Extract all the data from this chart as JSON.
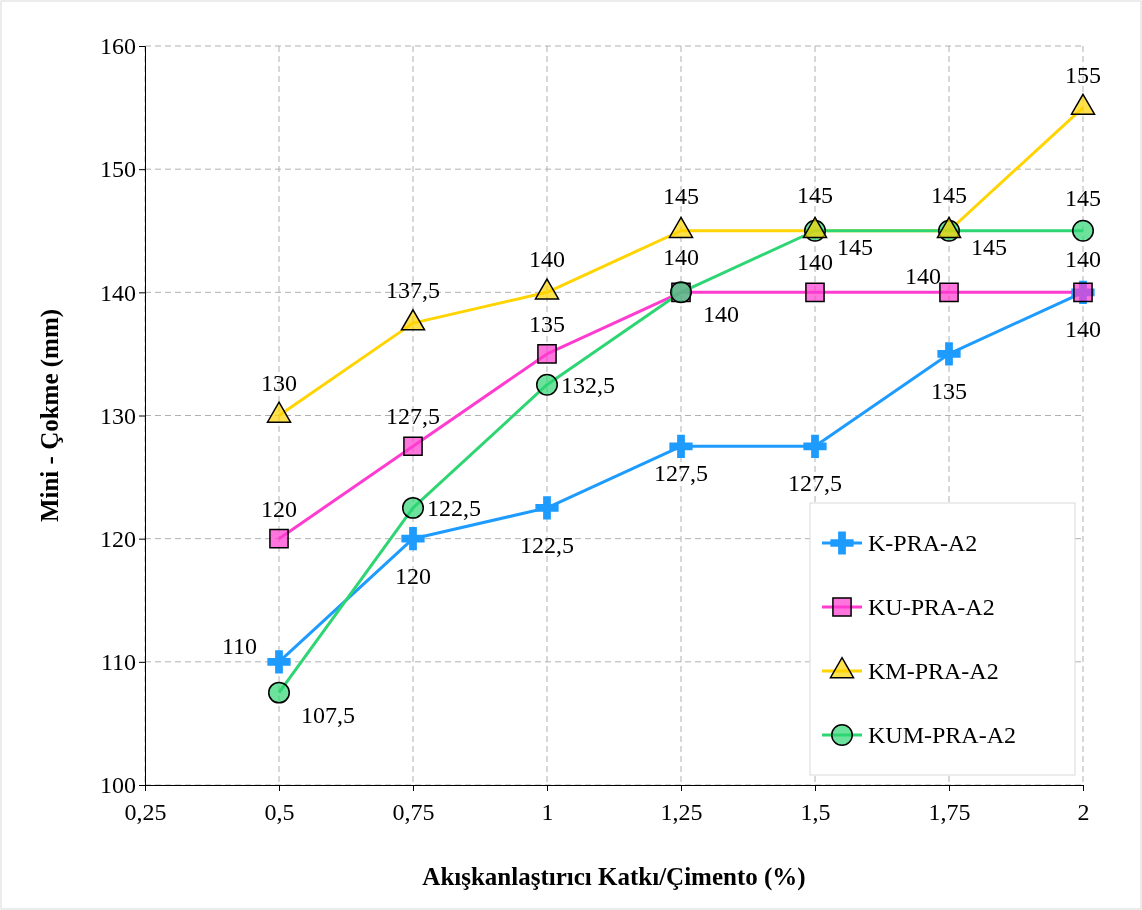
{
  "chart_data": {
    "type": "line",
    "xlabel": "Akışkanlaştırıcı Katkı/Çimento (%)",
    "ylabel": "Mini - Çokme (mm)",
    "x": [
      0.5,
      0.75,
      1,
      1.25,
      1.5,
      1.75,
      2
    ],
    "xlim": [
      0.25,
      2
    ],
    "xticks": [
      {
        "value": 0.25,
        "label": "0,25"
      },
      {
        "value": 0.5,
        "label": "0,5"
      },
      {
        "value": 0.75,
        "label": "0,75"
      },
      1,
      {
        "value": 1.25,
        "label": "1,25"
      },
      {
        "value": 1.5,
        "label": "1,5"
      },
      {
        "value": 1.75,
        "label": "1,75"
      },
      2
    ],
    "ylim": [
      100,
      160
    ],
    "yticks": [
      100,
      110,
      120,
      130,
      140,
      150,
      160
    ],
    "grid": true,
    "legend": "bottom right",
    "series": [
      {
        "name": "K-PRA-A2",
        "color": "#1e9bff",
        "marker": "cross",
        "values": [
          110,
          120,
          122.5,
          127.5,
          127.5,
          135,
          140
        ],
        "value_labels": [
          "110",
          "120",
          "122,5",
          "127,5",
          "127,5",
          "135",
          "140"
        ]
      },
      {
        "name": "KU-PRA-A2",
        "color": "#ff3bd0",
        "marker": "square",
        "values": [
          120,
          127.5,
          135,
          140,
          140,
          140,
          140
        ],
        "value_labels": [
          "120",
          "127,5",
          "135",
          "140",
          "140",
          "140",
          "140"
        ]
      },
      {
        "name": "KM-PRA-A2",
        "color": "#ffd400",
        "marker": "triangle",
        "values": [
          130,
          137.5,
          140,
          145,
          145,
          145,
          155
        ],
        "value_labels": [
          "130",
          "137,5",
          "140",
          "145",
          "145",
          "145",
          "155"
        ]
      },
      {
        "name": "KUM-PRA-A2",
        "color": "#2ed573",
        "marker": "circle",
        "values": [
          107.5,
          122.5,
          132.5,
          140,
          145,
          145,
          145
        ],
        "value_labels": [
          "107,5",
          "122,5",
          "132,5",
          "140",
          "145",
          "145",
          "145"
        ]
      }
    ]
  }
}
